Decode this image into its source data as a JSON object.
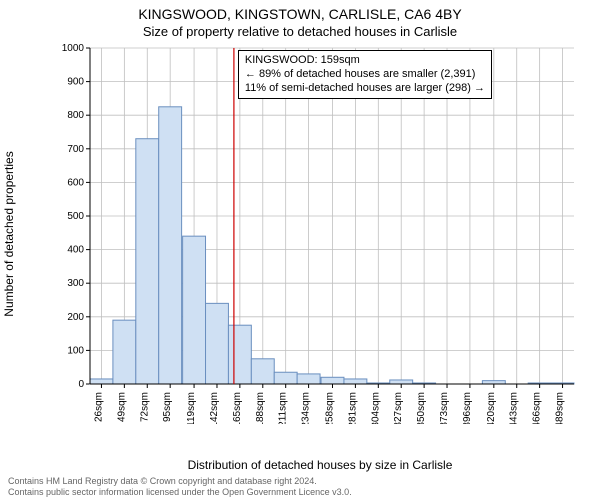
{
  "title": "KINGSWOOD, KINGSTOWN, CARLISLE, CA6 4BY",
  "subtitle": "Size of property relative to detached houses in Carlisle",
  "ylabel": "Number of detached properties",
  "xlabel": "Distribution of detached houses by size in Carlisle",
  "footer_line1": "Contains HM Land Registry data © Crown copyright and database right 2024.",
  "footer_line2": "Contains public sector information licensed under the Open Government Licence v3.0.",
  "annotation": {
    "line1": "KINGSWOOD: 159sqm",
    "line2": "← 89% of detached houses are smaller (2,391)",
    "line3": "11% of semi-detached houses are larger (298) →"
  },
  "chart": {
    "type": "histogram",
    "background_color": "#ffffff",
    "grid_color": "#bfbfbf",
    "axis_color": "#000000",
    "bar_fill": "#cfe0f3",
    "bar_stroke": "#6a8fbf",
    "marker_line_color": "#cc0000",
    "marker_x": 159,
    "ylim": [
      0,
      1000
    ],
    "ytick_step": 100,
    "xlim": [
      14.5,
      500.5
    ],
    "label_fontsize": 10,
    "categories": [
      "26sqm",
      "49sqm",
      "72sqm",
      "95sqm",
      "119sqm",
      "142sqm",
      "165sqm",
      "188sqm",
      "211sqm",
      "234sqm",
      "258sqm",
      "281sqm",
      "304sqm",
      "327sqm",
      "350sqm",
      "373sqm",
      "396sqm",
      "420sqm",
      "443sqm",
      "466sqm",
      "489sqm"
    ],
    "bin_centers": [
      26,
      49,
      72,
      95,
      119,
      142,
      165,
      188,
      211,
      234,
      258,
      281,
      304,
      327,
      350,
      373,
      396,
      420,
      443,
      466,
      489
    ],
    "bin_width": 23,
    "values": [
      15,
      190,
      730,
      825,
      440,
      240,
      175,
      75,
      35,
      30,
      20,
      15,
      3,
      12,
      3,
      0,
      0,
      10,
      0,
      3,
      3
    ]
  }
}
